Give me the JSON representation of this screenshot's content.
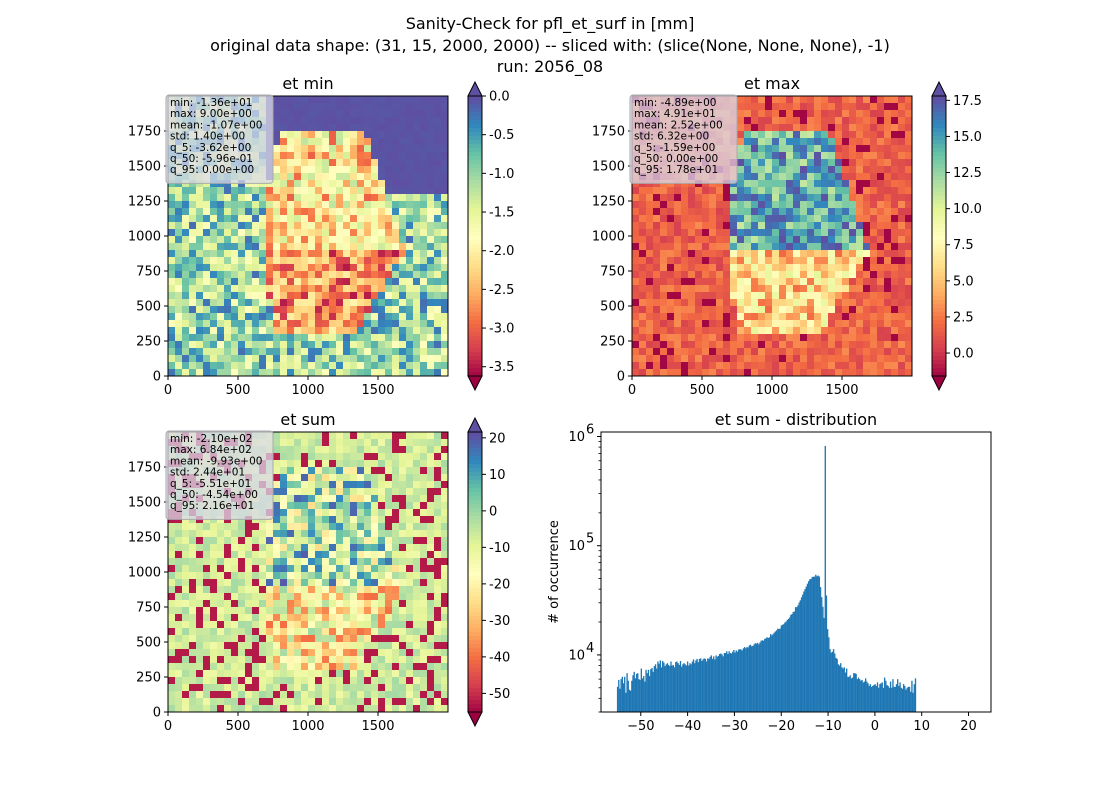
{
  "figure": {
    "title_lines": [
      "Sanity-Check for pfl_et_surf in [mm]",
      "original data shape: (31, 15, 2000, 2000) -- sliced with: (slice(None, None, None), -1)",
      "run: 2056_08"
    ]
  },
  "chart_data": [
    {
      "type": "heatmap",
      "title": "et min",
      "xlim": [
        0,
        2000
      ],
      "ylim": [
        0,
        2000
      ],
      "xticks": [
        0,
        500,
        1000,
        1500
      ],
      "yticks": [
        0,
        250,
        500,
        750,
        1000,
        1250,
        1500,
        1750
      ],
      "colormap": "Spectral",
      "colorbar": {
        "vmin": -3.62,
        "vmax": 0.0,
        "ticks": [
          "0.0",
          "-0.5",
          "-1.0",
          "-1.5",
          "-2.0",
          "-2.5",
          "-3.0",
          "-3.5"
        ],
        "tick_values": [
          0.0,
          -0.5,
          -1.0,
          -1.5,
          -2.0,
          -2.5,
          -3.0,
          -3.5
        ],
        "extend": "both"
      },
      "stats": [
        "min: -1.36e+01",
        "max: 9.00e+00",
        "mean: -1.07e+00",
        "std: 1.40e+00",
        "q_5: -3.62e+00",
        "q_50: -5.96e-01",
        "q_95: 0.00e+00"
      ]
    },
    {
      "type": "heatmap",
      "title": "et max",
      "xlim": [
        0,
        2000
      ],
      "ylim": [
        0,
        2000
      ],
      "xticks": [
        0,
        500,
        1000,
        1500
      ],
      "yticks": [
        0,
        250,
        500,
        750,
        1000,
        1250,
        1500,
        1750
      ],
      "colormap": "Spectral",
      "colorbar": {
        "vmin": -1.59,
        "vmax": 17.8,
        "ticks": [
          "17.5",
          "15.0",
          "12.5",
          "10.0",
          "7.5",
          "5.0",
          "2.5",
          "0.0"
        ],
        "tick_values": [
          17.5,
          15.0,
          12.5,
          10.0,
          7.5,
          5.0,
          2.5,
          0.0
        ],
        "extend": "both"
      },
      "stats": [
        "min: -4.89e+00",
        "max: 4.91e+01",
        "mean: 2.52e+00",
        "std: 6.32e+00",
        "q_5: -1.59e+00",
        "q_50: 0.00e+00",
        "q_95: 1.78e+01"
      ]
    },
    {
      "type": "heatmap",
      "title": "et sum",
      "xlim": [
        0,
        2000
      ],
      "ylim": [
        0,
        2000
      ],
      "xticks": [
        0,
        500,
        1000,
        1500
      ],
      "yticks": [
        0,
        250,
        500,
        750,
        1000,
        1250,
        1500,
        1750
      ],
      "colormap": "Spectral",
      "colorbar": {
        "vmin": -55.1,
        "vmax": 21.6,
        "ticks": [
          "20",
          "10",
          "0",
          "-10",
          "-20",
          "-30",
          "-40",
          "-50"
        ],
        "tick_values": [
          20,
          10,
          0,
          -10,
          -20,
          -30,
          -40,
          -50
        ],
        "extend": "both"
      },
      "stats": [
        "min: -2.10e+02",
        "max: 6.84e+02",
        "mean: -9.93e+00",
        "std: 2.44e+01",
        "q_5: -5.51e+01",
        "q_50: -4.54e+00",
        "q_95: 2.16e+01"
      ]
    },
    {
      "type": "bar",
      "title": "et sum - distribution",
      "ylabel": "# of occurrence",
      "yscale": "log",
      "xlim": [
        -58.5,
        24.8
      ],
      "ylim": [
        3000,
        1100000
      ],
      "xticks": [
        "-50",
        "-40",
        "-30",
        "-20",
        "-10",
        "0",
        "10",
        "20"
      ],
      "xtick_values": [
        -50,
        -40,
        -30,
        -20,
        -10,
        0,
        10,
        20
      ],
      "yticks": [
        10000,
        100000,
        1000000
      ],
      "ytick_labels": [
        [
          "10",
          "4"
        ],
        [
          "10",
          "5"
        ],
        [
          "10",
          "6"
        ]
      ],
      "bar_color": "#1f77b4",
      "bin_start": -55.1,
      "bin_width": 0.2535,
      "counts": [
        5100,
        5900,
        4900,
        6000,
        6300,
        5500,
        6300,
        4500,
        6800,
        5800,
        4800,
        4700,
        5800,
        6500,
        7000,
        6100,
        6700,
        6800,
        6000,
        5900,
        7500,
        6100,
        6400,
        5700,
        7300,
        6800,
        7300,
        6400,
        7400,
        7600,
        7000,
        7900,
        8200,
        7500,
        8700,
        8300,
        8900,
        7700,
        8800,
        8500,
        7900,
        8200,
        8400,
        8100,
        7900,
        8700,
        8000,
        8100,
        7700,
        8600,
        8700,
        8400,
        8100,
        8800,
        7800,
        8200,
        8400,
        8200,
        8000,
        8700,
        8000,
        8400,
        8200,
        8700,
        9100,
        8400,
        8900,
        9200,
        8600,
        9200,
        9300,
        8800,
        9100,
        9300,
        9200,
        8700,
        9300,
        9200,
        9600,
        9900,
        9200,
        9700,
        9100,
        9900,
        9600,
        9800,
        10200,
        10300,
        10100,
        9700,
        10400,
        10400,
        10800,
        10200,
        10800,
        10400,
        10300,
        10700,
        11100,
        10500,
        11000,
        10700,
        11200,
        11300,
        11200,
        11000,
        11500,
        11800,
        11500,
        11800,
        11700,
        12200,
        12400,
        12000,
        12100,
        12500,
        12800,
        12700,
        12900,
        12500,
        13000,
        13500,
        13600,
        13500,
        14000,
        14200,
        14500,
        14300,
        14500,
        15500,
        15100,
        15500,
        16000,
        16400,
        16800,
        17400,
        17300,
        17400,
        18600,
        18900,
        19100,
        19800,
        20200,
        20900,
        21400,
        22000,
        23200,
        23700,
        24700,
        25000,
        27400,
        27400,
        28400,
        30200,
        31600,
        33700,
        35700,
        38100,
        40200,
        42300,
        44900,
        47300,
        49300,
        49700,
        51800,
        52000,
        52100,
        54300,
        52500,
        53300,
        52200,
        41800,
        33800,
        27600,
        21800,
        820000,
        35000,
        17200,
        14500,
        11300,
        10500,
        10700,
        11300,
        10300,
        9400,
        9200,
        8200,
        8000,
        8400,
        7700,
        7500,
        7700,
        6900,
        7500,
        6300,
        6300,
        6500,
        6100,
        6200,
        6800,
        6800,
        6700,
        6000,
        6200,
        6000,
        5800,
        5900,
        5600,
        5700,
        6100,
        5700,
        5500,
        5200,
        5400,
        5100,
        5200,
        5300,
        5400,
        5200,
        5600,
        5000,
        5400,
        5500,
        5600,
        5000,
        6200,
        5800,
        5300,
        5200,
        5000,
        5700,
        5000,
        6000,
        5100,
        5100,
        5400,
        6000,
        5200,
        5600,
        5000,
        4900,
        5400,
        5200,
        4800,
        5000,
        5100,
        5100,
        4600,
        5800,
        4500,
        5400,
        6100
      ]
    }
  ]
}
